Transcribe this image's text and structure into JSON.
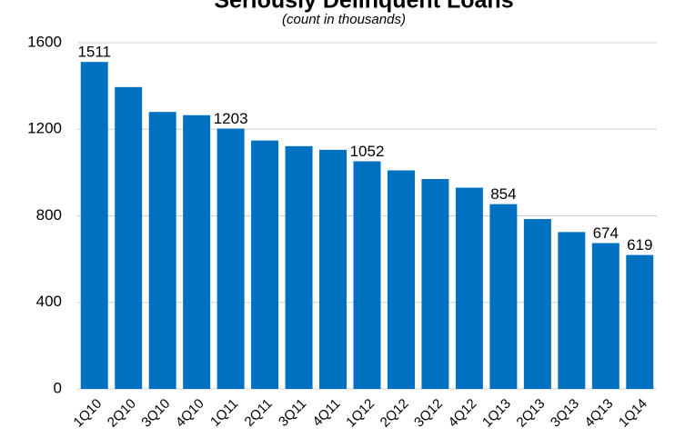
{
  "chart_data": {
    "type": "bar",
    "title": "Seriously Delinquent Loans",
    "subtitle": "(count in thousands)",
    "categories": [
      "1Q10",
      "2Q10",
      "3Q10",
      "4Q10",
      "1Q11",
      "2Q11",
      "3Q11",
      "4Q11",
      "1Q12",
      "2Q12",
      "3Q12",
      "4Q12",
      "1Q13",
      "2Q13",
      "3Q13",
      "4Q13",
      "1Q14"
    ],
    "values": [
      1511,
      1395,
      1280,
      1265,
      1203,
      1148,
      1122,
      1105,
      1052,
      1010,
      970,
      930,
      854,
      785,
      725,
      674,
      619
    ],
    "value_labels": [
      "1511",
      null,
      null,
      null,
      "1203",
      null,
      null,
      null,
      "1052",
      null,
      null,
      null,
      "854",
      null,
      null,
      "674",
      "619"
    ],
    "color": "#0070c0",
    "ylim": [
      0,
      1600
    ],
    "yticks": [
      0,
      400,
      800,
      1200,
      1600
    ],
    "grid": true
  }
}
